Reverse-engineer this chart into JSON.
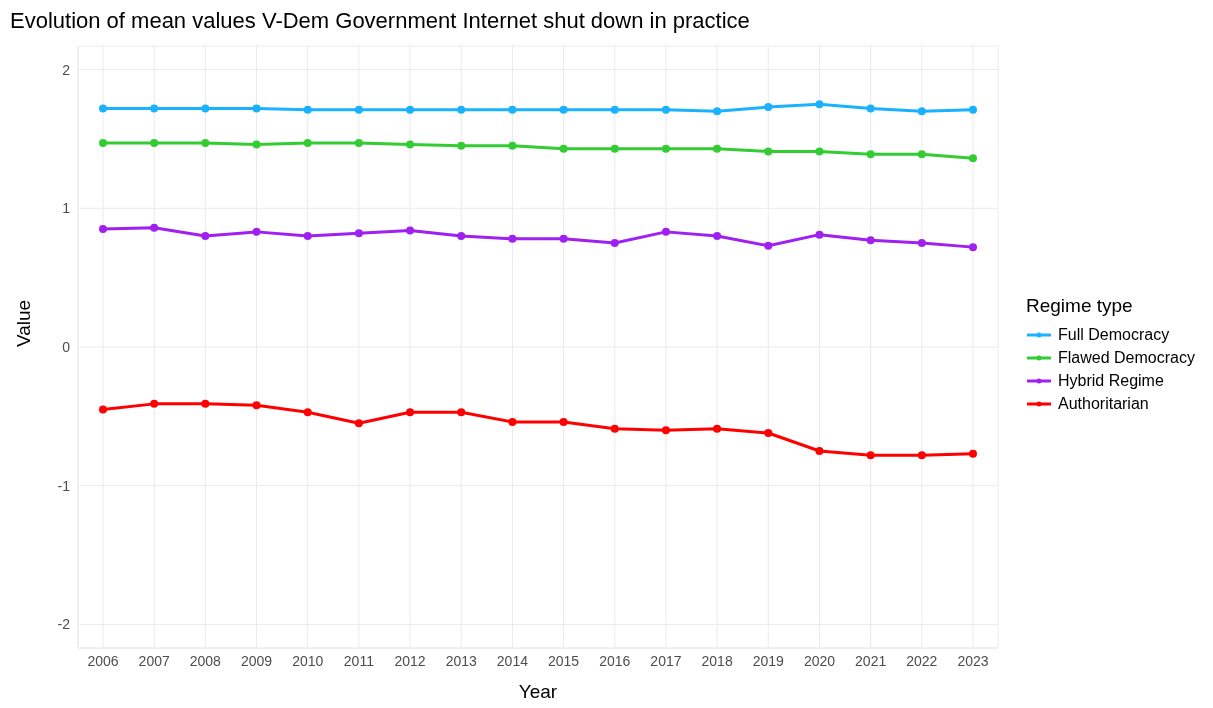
{
  "chart_data": {
    "type": "line",
    "title": "Evolution of mean values V-Dem Government Internet shut down in practice",
    "xlabel": "Year",
    "ylabel": "Value",
    "legend_title": "Regime type",
    "categories": [
      "2006",
      "2007",
      "2008",
      "2009",
      "2010",
      "2011",
      "2012",
      "2013",
      "2014",
      "2015",
      "2016",
      "2017",
      "2018",
      "2019",
      "2020",
      "2021",
      "2022",
      "2023"
    ],
    "series": [
      {
        "name": "Full Democracy",
        "color": "#1ab2ff",
        "values": [
          1.72,
          1.72,
          1.72,
          1.72,
          1.71,
          1.71,
          1.71,
          1.71,
          1.71,
          1.71,
          1.71,
          1.71,
          1.7,
          1.73,
          1.75,
          1.72,
          1.7,
          1.71
        ]
      },
      {
        "name": "Flawed Democracy",
        "color": "#33cc33",
        "values": [
          1.47,
          1.47,
          1.47,
          1.46,
          1.47,
          1.47,
          1.46,
          1.45,
          1.45,
          1.43,
          1.43,
          1.43,
          1.43,
          1.41,
          1.41,
          1.39,
          1.39,
          1.36
        ]
      },
      {
        "name": "Hybrid Regime",
        "color": "#a020f0",
        "values": [
          0.85,
          0.86,
          0.8,
          0.83,
          0.8,
          0.82,
          0.84,
          0.8,
          0.78,
          0.78,
          0.75,
          0.83,
          0.8,
          0.73,
          0.81,
          0.77,
          0.75,
          0.72
        ]
      },
      {
        "name": "Authoritarian",
        "color": "#ff0000",
        "values": [
          -0.45,
          -0.41,
          -0.41,
          -0.42,
          -0.47,
          -0.55,
          -0.47,
          -0.47,
          -0.54,
          -0.54,
          -0.59,
          -0.6,
          -0.59,
          -0.62,
          -0.75,
          -0.78,
          -0.78,
          -0.77
        ]
      }
    ],
    "ylim": [
      -2.17,
      2.17
    ],
    "yticks": [
      -2,
      -1,
      0,
      1,
      2
    ],
    "grid": true,
    "legend": "right",
    "marker": "circle",
    "line_style": "solid"
  }
}
